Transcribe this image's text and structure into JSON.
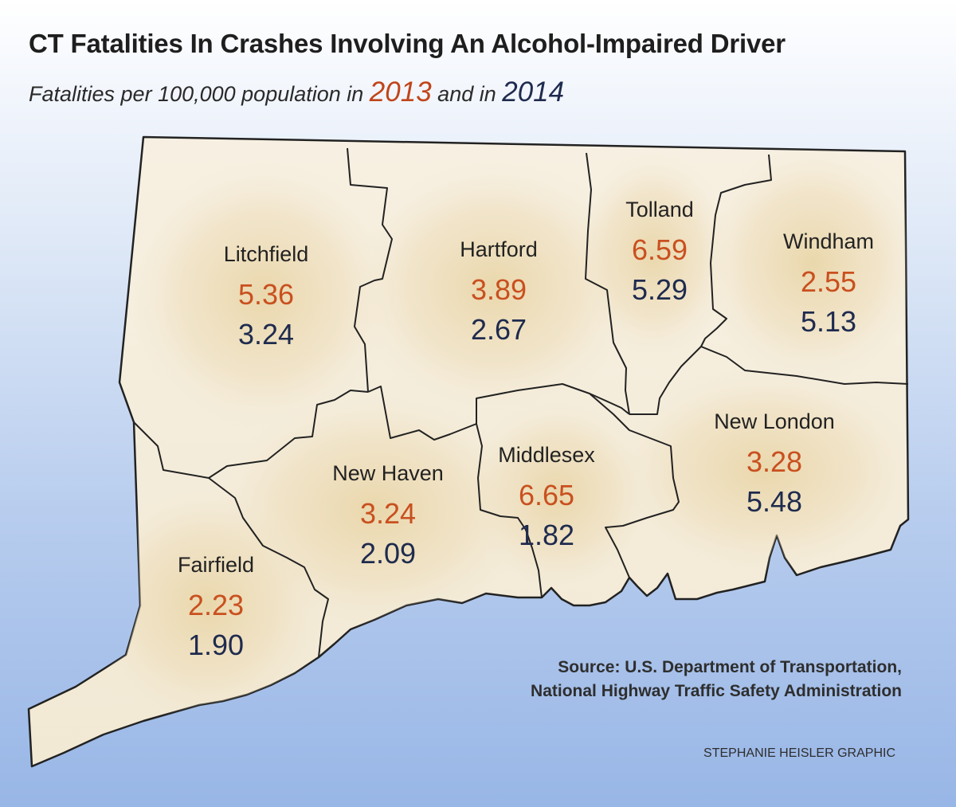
{
  "title": "CT Fatalities In Crashes Involving An Alcohol-Impaired Driver",
  "subtitle": {
    "prefix": "Fatalities per 100,000 population in ",
    "year_a": "2013",
    "middle": " and in ",
    "year_b": "2014"
  },
  "colors": {
    "year_2013": "#c9501f",
    "year_2014": "#1f2b4e"
  },
  "counties": [
    {
      "name": "Litchfield",
      "v2013": "5.36",
      "v2014": "3.24"
    },
    {
      "name": "Hartford",
      "v2013": "3.89",
      "v2014": "2.67"
    },
    {
      "name": "Tolland",
      "v2013": "6.59",
      "v2014": "5.29"
    },
    {
      "name": "Windham",
      "v2013": "2.55",
      "v2014": "5.13"
    },
    {
      "name": "New London",
      "v2013": "3.28",
      "v2014": "5.48"
    },
    {
      "name": "Middlesex",
      "v2013": "6.65",
      "v2014": "1.82"
    },
    {
      "name": "New Haven",
      "v2013": "3.24",
      "v2014": "2.09"
    },
    {
      "name": "Fairfield",
      "v2013": "2.23",
      "v2014": "1.90"
    }
  ],
  "source": {
    "line1": "Source: U.S. Department of Transportation,",
    "line2": "National Highway Traffic Safety Administration"
  },
  "credit": "STEPHANIE HEISLER GRAPHIC"
}
